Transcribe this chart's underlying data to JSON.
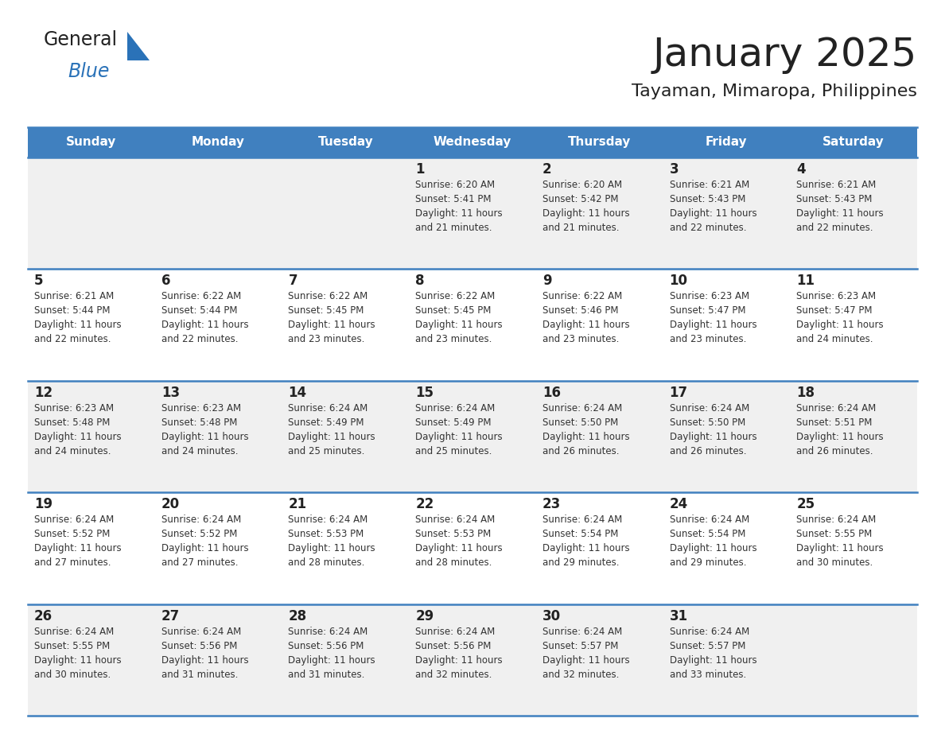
{
  "title": "January 2025",
  "subtitle": "Tayaman, Mimaropa, Philippines",
  "header_bg": "#4080bf",
  "header_text_color": "#ffffff",
  "cell_bg_light": "#f0f0f0",
  "cell_bg_white": "#ffffff",
  "cell_text_color": "#333333",
  "day_number_color": "#222222",
  "separator_color": "#4080bf",
  "days_of_week": [
    "Sunday",
    "Monday",
    "Tuesday",
    "Wednesday",
    "Thursday",
    "Friday",
    "Saturday"
  ],
  "weeks": [
    [
      {
        "day": "",
        "info": ""
      },
      {
        "day": "",
        "info": ""
      },
      {
        "day": "",
        "info": ""
      },
      {
        "day": "1",
        "info": "Sunrise: 6:20 AM\nSunset: 5:41 PM\nDaylight: 11 hours\nand 21 minutes."
      },
      {
        "day": "2",
        "info": "Sunrise: 6:20 AM\nSunset: 5:42 PM\nDaylight: 11 hours\nand 21 minutes."
      },
      {
        "day": "3",
        "info": "Sunrise: 6:21 AM\nSunset: 5:43 PM\nDaylight: 11 hours\nand 22 minutes."
      },
      {
        "day": "4",
        "info": "Sunrise: 6:21 AM\nSunset: 5:43 PM\nDaylight: 11 hours\nand 22 minutes."
      }
    ],
    [
      {
        "day": "5",
        "info": "Sunrise: 6:21 AM\nSunset: 5:44 PM\nDaylight: 11 hours\nand 22 minutes."
      },
      {
        "day": "6",
        "info": "Sunrise: 6:22 AM\nSunset: 5:44 PM\nDaylight: 11 hours\nand 22 minutes."
      },
      {
        "day": "7",
        "info": "Sunrise: 6:22 AM\nSunset: 5:45 PM\nDaylight: 11 hours\nand 23 minutes."
      },
      {
        "day": "8",
        "info": "Sunrise: 6:22 AM\nSunset: 5:45 PM\nDaylight: 11 hours\nand 23 minutes."
      },
      {
        "day": "9",
        "info": "Sunrise: 6:22 AM\nSunset: 5:46 PM\nDaylight: 11 hours\nand 23 minutes."
      },
      {
        "day": "10",
        "info": "Sunrise: 6:23 AM\nSunset: 5:47 PM\nDaylight: 11 hours\nand 23 minutes."
      },
      {
        "day": "11",
        "info": "Sunrise: 6:23 AM\nSunset: 5:47 PM\nDaylight: 11 hours\nand 24 minutes."
      }
    ],
    [
      {
        "day": "12",
        "info": "Sunrise: 6:23 AM\nSunset: 5:48 PM\nDaylight: 11 hours\nand 24 minutes."
      },
      {
        "day": "13",
        "info": "Sunrise: 6:23 AM\nSunset: 5:48 PM\nDaylight: 11 hours\nand 24 minutes."
      },
      {
        "day": "14",
        "info": "Sunrise: 6:24 AM\nSunset: 5:49 PM\nDaylight: 11 hours\nand 25 minutes."
      },
      {
        "day": "15",
        "info": "Sunrise: 6:24 AM\nSunset: 5:49 PM\nDaylight: 11 hours\nand 25 minutes."
      },
      {
        "day": "16",
        "info": "Sunrise: 6:24 AM\nSunset: 5:50 PM\nDaylight: 11 hours\nand 26 minutes."
      },
      {
        "day": "17",
        "info": "Sunrise: 6:24 AM\nSunset: 5:50 PM\nDaylight: 11 hours\nand 26 minutes."
      },
      {
        "day": "18",
        "info": "Sunrise: 6:24 AM\nSunset: 5:51 PM\nDaylight: 11 hours\nand 26 minutes."
      }
    ],
    [
      {
        "day": "19",
        "info": "Sunrise: 6:24 AM\nSunset: 5:52 PM\nDaylight: 11 hours\nand 27 minutes."
      },
      {
        "day": "20",
        "info": "Sunrise: 6:24 AM\nSunset: 5:52 PM\nDaylight: 11 hours\nand 27 minutes."
      },
      {
        "day": "21",
        "info": "Sunrise: 6:24 AM\nSunset: 5:53 PM\nDaylight: 11 hours\nand 28 minutes."
      },
      {
        "day": "22",
        "info": "Sunrise: 6:24 AM\nSunset: 5:53 PM\nDaylight: 11 hours\nand 28 minutes."
      },
      {
        "day": "23",
        "info": "Sunrise: 6:24 AM\nSunset: 5:54 PM\nDaylight: 11 hours\nand 29 minutes."
      },
      {
        "day": "24",
        "info": "Sunrise: 6:24 AM\nSunset: 5:54 PM\nDaylight: 11 hours\nand 29 minutes."
      },
      {
        "day": "25",
        "info": "Sunrise: 6:24 AM\nSunset: 5:55 PM\nDaylight: 11 hours\nand 30 minutes."
      }
    ],
    [
      {
        "day": "26",
        "info": "Sunrise: 6:24 AM\nSunset: 5:55 PM\nDaylight: 11 hours\nand 30 minutes."
      },
      {
        "day": "27",
        "info": "Sunrise: 6:24 AM\nSunset: 5:56 PM\nDaylight: 11 hours\nand 31 minutes."
      },
      {
        "day": "28",
        "info": "Sunrise: 6:24 AM\nSunset: 5:56 PM\nDaylight: 11 hours\nand 31 minutes."
      },
      {
        "day": "29",
        "info": "Sunrise: 6:24 AM\nSunset: 5:56 PM\nDaylight: 11 hours\nand 32 minutes."
      },
      {
        "day": "30",
        "info": "Sunrise: 6:24 AM\nSunset: 5:57 PM\nDaylight: 11 hours\nand 32 minutes."
      },
      {
        "day": "31",
        "info": "Sunrise: 6:24 AM\nSunset: 5:57 PM\nDaylight: 11 hours\nand 33 minutes."
      },
      {
        "day": "",
        "info": ""
      }
    ]
  ],
  "logo_color_general": "#222222",
  "logo_color_blue": "#2a72b8"
}
